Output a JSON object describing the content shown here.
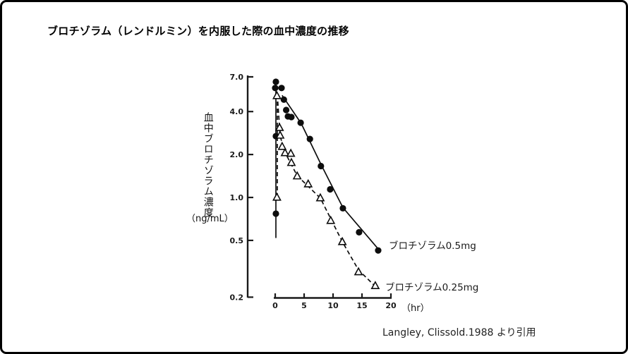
{
  "chart_data": {
    "type": "line",
    "title": "ブロチゾラム（レンドルミン）を内服した際の血中濃度の推移",
    "xlabel": "（hr）",
    "ylabel": "血中ブロチゾラム濃度",
    "ylabel_unit": "（ng/mL）",
    "y_scale": "log",
    "xlim": [
      0,
      20
    ],
    "ylim": [
      0.2,
      7.0
    ],
    "x_ticks": [
      0,
      5,
      10,
      15,
      20
    ],
    "x_tick_labels": [
      "0",
      "5",
      "10",
      "15",
      "20"
    ],
    "y_ticks": [
      7.0,
      4.0,
      2.0,
      1.0,
      0.5,
      0.2
    ],
    "y_tick_labels": [
      "7.0",
      "4.0",
      "2.0",
      "1.0",
      "0.5",
      "0.2"
    ],
    "grid": false,
    "legend_position": "right-of-line-ends",
    "series": [
      {
        "name": "ブロチゾラム0.5mg",
        "marker": "filled-circle",
        "line_style": "solid",
        "color": "#0d0d0d",
        "points": [
          [
            0.0,
            5.85
          ],
          [
            0.12,
            6.47
          ],
          [
            0.12,
            2.69
          ],
          [
            0.12,
            0.77
          ],
          [
            1.1,
            5.85
          ],
          [
            1.5,
            4.85
          ],
          [
            1.9,
            4.1
          ],
          [
            2.2,
            3.7
          ],
          [
            2.8,
            3.66
          ],
          [
            4.4,
            3.34
          ],
          [
            6.0,
            2.57
          ],
          [
            7.9,
            1.66
          ],
          [
            9.5,
            1.14
          ],
          [
            11.7,
            0.84
          ],
          [
            14.5,
            0.57
          ],
          [
            17.8,
            0.425
          ]
        ],
        "rise_line": [
          [
            0.12,
            0.52
          ],
          [
            0.12,
            6.47
          ]
        ],
        "fit_line": [
          [
            1.2,
            5.2
          ],
          [
            4.5,
            3.3
          ],
          [
            7.9,
            1.71
          ],
          [
            11.7,
            0.85
          ],
          [
            17.8,
            0.435
          ]
        ]
      },
      {
        "name": "ブロチゾラム0.25mg",
        "marker": "open-triangle",
        "line_style": "dashed",
        "color": "#0d0d0d",
        "points": [
          [
            0.3,
            1.0
          ],
          [
            0.3,
            5.15
          ],
          [
            0.75,
            3.08
          ],
          [
            0.85,
            2.72
          ],
          [
            1.2,
            2.27
          ],
          [
            1.7,
            2.05
          ],
          [
            2.7,
            2.03
          ],
          [
            2.8,
            1.75
          ],
          [
            3.8,
            1.41
          ],
          [
            5.7,
            1.24
          ],
          [
            7.8,
            0.99
          ],
          [
            9.6,
            0.687
          ],
          [
            11.6,
            0.488
          ],
          [
            14.4,
            0.3
          ],
          [
            17.3,
            0.24
          ]
        ],
        "rise_line": [
          [
            0.37,
            1.0
          ],
          [
            0.37,
            5.27
          ]
        ],
        "fit_line": [
          [
            0.37,
            5.27
          ],
          [
            0.85,
            2.69
          ],
          [
            1.7,
            2.07
          ],
          [
            3.8,
            1.42
          ],
          [
            7.8,
            0.99
          ],
          [
            11.6,
            0.49
          ],
          [
            14.4,
            0.31
          ],
          [
            17.3,
            0.238
          ]
        ]
      }
    ],
    "annotation": "Langley, Clissold.1988 より引用"
  }
}
